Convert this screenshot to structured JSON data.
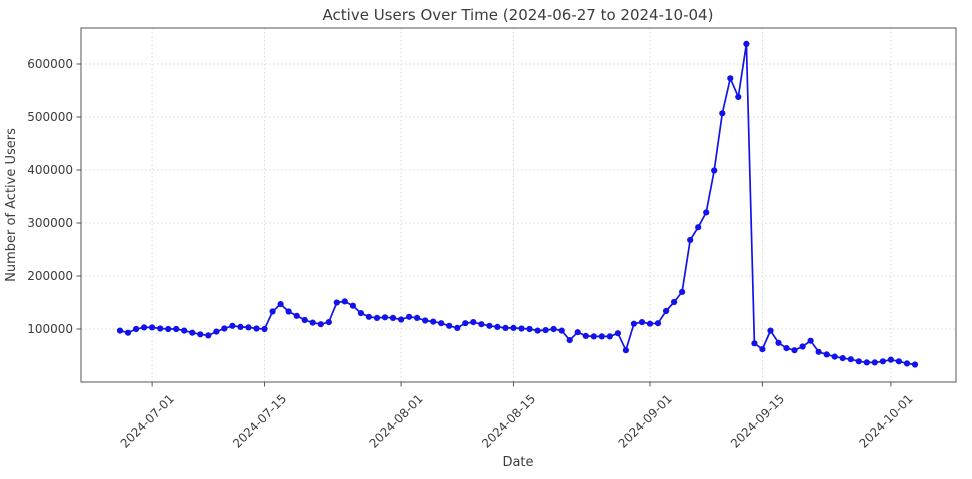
{
  "chart_data": {
    "type": "line",
    "title": "Active Users Over Time (2024-06-27 to 2024-10-04)",
    "xlabel": "Date",
    "ylabel": "Number of Active Users",
    "legend": null,
    "grid": "dotted",
    "ylim": [
      0,
      668000
    ],
    "y_ticks": [
      100000,
      200000,
      300000,
      400000,
      500000,
      600000
    ],
    "x_ticks": [
      "2024-07-01",
      "2024-07-15",
      "2024-08-01",
      "2024-08-15",
      "2024-09-01",
      "2024-09-15",
      "2024-10-01"
    ],
    "series_name": "Active Users",
    "dates": [
      "2024-06-27",
      "2024-06-28",
      "2024-06-29",
      "2024-06-30",
      "2024-07-01",
      "2024-07-02",
      "2024-07-03",
      "2024-07-04",
      "2024-07-05",
      "2024-07-06",
      "2024-07-07",
      "2024-07-08",
      "2024-07-09",
      "2024-07-10",
      "2024-07-11",
      "2024-07-12",
      "2024-07-13",
      "2024-07-14",
      "2024-07-15",
      "2024-07-16",
      "2024-07-17",
      "2024-07-18",
      "2024-07-19",
      "2024-07-20",
      "2024-07-21",
      "2024-07-22",
      "2024-07-23",
      "2024-07-24",
      "2024-07-25",
      "2024-07-26",
      "2024-07-27",
      "2024-07-28",
      "2024-07-29",
      "2024-07-30",
      "2024-07-31",
      "2024-08-01",
      "2024-08-02",
      "2024-08-03",
      "2024-08-04",
      "2024-08-05",
      "2024-08-06",
      "2024-08-07",
      "2024-08-08",
      "2024-08-09",
      "2024-08-10",
      "2024-08-11",
      "2024-08-12",
      "2024-08-13",
      "2024-08-14",
      "2024-08-15",
      "2024-08-16",
      "2024-08-17",
      "2024-08-18",
      "2024-08-19",
      "2024-08-20",
      "2024-08-21",
      "2024-08-22",
      "2024-08-23",
      "2024-08-24",
      "2024-08-25",
      "2024-08-26",
      "2024-08-27",
      "2024-08-28",
      "2024-08-29",
      "2024-08-30",
      "2024-08-31",
      "2024-09-01",
      "2024-09-02",
      "2024-09-03",
      "2024-09-04",
      "2024-09-05",
      "2024-09-06",
      "2024-09-07",
      "2024-09-08",
      "2024-09-09",
      "2024-09-10",
      "2024-09-11",
      "2024-09-12",
      "2024-09-13",
      "2024-09-14",
      "2024-09-15",
      "2024-09-16",
      "2024-09-17",
      "2024-09-18",
      "2024-09-19",
      "2024-09-20",
      "2024-09-21",
      "2024-09-22",
      "2024-09-23",
      "2024-09-24",
      "2024-09-25",
      "2024-09-26",
      "2024-09-27",
      "2024-09-28",
      "2024-09-29",
      "2024-09-30",
      "2024-10-01",
      "2024-10-02",
      "2024-10-03",
      "2024-10-04"
    ],
    "values": [
      97000,
      93000,
      100000,
      103000,
      103000,
      101000,
      100000,
      100000,
      97000,
      93000,
      90000,
      88000,
      95000,
      101000,
      106000,
      104000,
      103000,
      101000,
      100000,
      133000,
      147000,
      133000,
      125000,
      117000,
      112000,
      109000,
      113000,
      150000,
      152000,
      144000,
      130000,
      123000,
      121000,
      122000,
      121000,
      118000,
      123000,
      121000,
      116000,
      114000,
      111000,
      106000,
      102000,
      111000,
      113000,
      109000,
      106000,
      104000,
      102000,
      102000,
      101000,
      100000,
      97000,
      98000,
      100000,
      97000,
      79000,
      94000,
      87000,
      86000,
      86000,
      86000,
      92000,
      60000,
      110000,
      113000,
      110000,
      111000,
      134000,
      151000,
      170000,
      268000,
      292000,
      320000,
      399000,
      507000,
      573000,
      538000,
      638000,
      73000,
      62000,
      97000,
      74000,
      64000,
      60000,
      67000,
      78000,
      57000,
      52000,
      48000,
      45000,
      43000,
      39000,
      37000,
      37000,
      39000,
      42000,
      39000,
      35000,
      33000
    ],
    "colors": {
      "line": "#1212ea",
      "marker": "#1212ea",
      "grid": "#dadada",
      "spine": "#565656",
      "text": "#3c3c3c",
      "background": "#ffffff"
    }
  }
}
